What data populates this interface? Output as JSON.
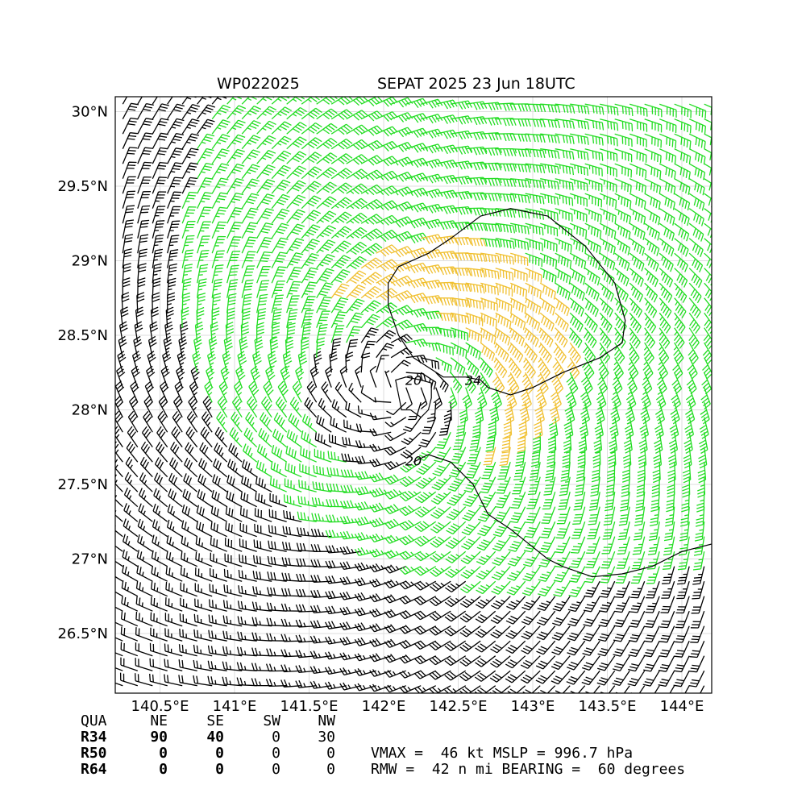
{
  "header": {
    "storm_id": "WP022025",
    "storm_title": "SEPAT 2025 23 Jun 18UTC"
  },
  "map": {
    "lon_range": [
      140.2,
      144.2
    ],
    "lat_range": [
      26.1,
      30.1
    ],
    "x_ticks": [
      "140.5°E",
      "141°E",
      "141.5°E",
      "142°E",
      "142.5°E",
      "143°E",
      "143.5°E",
      "144°E"
    ],
    "y_ticks": [
      "30°N",
      "29.5°N",
      "29°N",
      "28.5°N",
      "28°N",
      "27.5°N",
      "27°N",
      "26.5°N"
    ],
    "contour_labels": [
      "20",
      "34",
      "20"
    ],
    "colors": {
      "calm": "#000000",
      "gale": "#22dd22",
      "storm": "#f0c030",
      "contour": "#000000",
      "grid": "#dddddd"
    },
    "center": {
      "lon": 142.1,
      "lat": 28.15
    },
    "thresholds_kt": [
      34,
      50
    ]
  },
  "quadrants": {
    "header": [
      "QUA",
      "NE",
      "SE",
      "SW",
      "NW"
    ],
    "rows": [
      {
        "label": "R34",
        "values": [
          "90",
          "40",
          "0",
          "30"
        ]
      },
      {
        "label": "R50",
        "values": [
          "0",
          "0",
          "0",
          "0"
        ]
      },
      {
        "label": "R64",
        "values": [
          "0",
          "0",
          "0",
          "0"
        ]
      }
    ]
  },
  "summary": {
    "line1": "VMAX =  46 kt MSLP = 996.7 hPa",
    "line2": "RMW =  42 n mi BEARING =  60 degrees"
  }
}
